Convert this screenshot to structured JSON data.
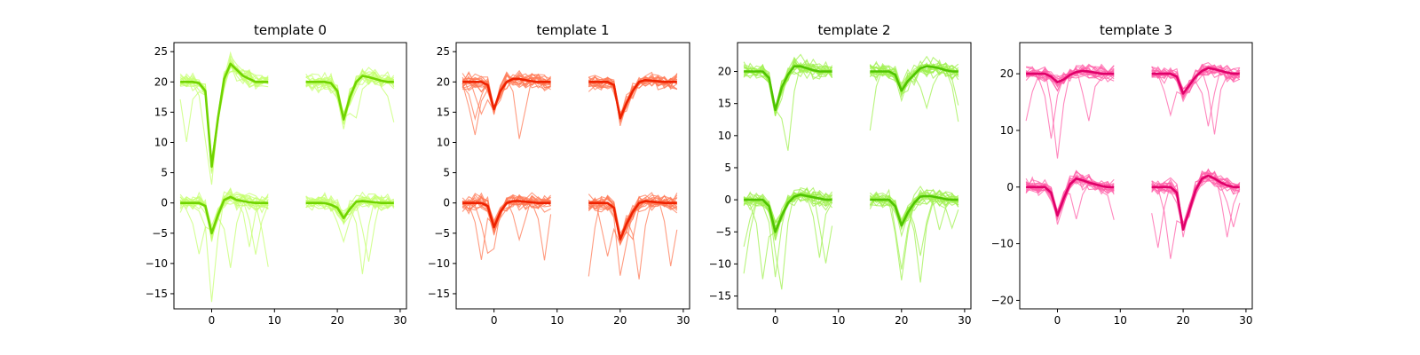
{
  "colors": {
    "template_0": {
      "light": "#c6ff70",
      "dark": "#70d400"
    },
    "template_1": {
      "light": "#ff7a55",
      "dark": "#ee2200"
    },
    "template_2": {
      "light": "#a0f050",
      "dark": "#4fc400"
    },
    "template_3": {
      "light": "#ff5fa8",
      "dark": "#e0006a"
    }
  },
  "chart_data": [
    {
      "type": "line",
      "title": "template 0",
      "xlabel": "",
      "ylabel": "",
      "xlim": [
        -6,
        31
      ],
      "ylim": [
        -17.5,
        26.5
      ],
      "xticks": [
        0,
        10,
        20,
        30
      ],
      "xtick_labels": [
        "0",
        "10",
        "20",
        "30"
      ],
      "yticks": [
        -15,
        -10,
        -5,
        0,
        5,
        10,
        15,
        20,
        25
      ],
      "ytick_labels": [
        "−15",
        "−10",
        "−5",
        "0",
        "5",
        "10",
        "15",
        "20",
        "25"
      ],
      "grid": false,
      "series": [
        {
          "channel": 0,
          "x": [
            -5,
            -4,
            -3,
            -2,
            -1,
            0,
            1,
            2,
            3,
            4,
            5,
            6,
            7,
            8,
            9
          ],
          "y": [
            20.0,
            20.0,
            20.0,
            19.8,
            18.5,
            6.0,
            14.0,
            20.5,
            23.0,
            22.0,
            21.0,
            20.5,
            20.0,
            20.0,
            20.0
          ]
        },
        {
          "channel": 1,
          "x": [
            15,
            16,
            17,
            18,
            19,
            20,
            21,
            22,
            23,
            24,
            25,
            26,
            27,
            28,
            29
          ],
          "y": [
            20.0,
            20.0,
            20.0,
            20.0,
            19.8,
            18.5,
            13.8,
            17.5,
            20.0,
            21.0,
            20.8,
            20.5,
            20.2,
            20.0,
            20.0
          ]
        },
        {
          "channel": 2,
          "x": [
            -5,
            -4,
            -3,
            -2,
            -1,
            0,
            1,
            2,
            3,
            4,
            5,
            6,
            7,
            8,
            9
          ],
          "y": [
            0.0,
            0.0,
            0.0,
            0.0,
            -0.5,
            -5.0,
            -2.0,
            0.5,
            1.0,
            0.5,
            0.3,
            0.1,
            0.0,
            0.0,
            0.0
          ]
        },
        {
          "channel": 3,
          "x": [
            15,
            16,
            17,
            18,
            19,
            20,
            21,
            22,
            23,
            24,
            25,
            26,
            27,
            28,
            29
          ],
          "y": [
            0.0,
            0.0,
            0.0,
            0.0,
            -0.3,
            -0.8,
            -2.5,
            -1.0,
            0.2,
            0.3,
            0.2,
            0.1,
            0.0,
            0.0,
            0.0
          ]
        }
      ]
    },
    {
      "type": "line",
      "title": "template 1",
      "xlabel": "",
      "ylabel": "",
      "xlim": [
        -6,
        31
      ],
      "ylim": [
        -17.5,
        26.5
      ],
      "xticks": [
        0,
        10,
        20,
        30
      ],
      "xtick_labels": [
        "0",
        "10",
        "20",
        "30"
      ],
      "yticks": [
        -15,
        -10,
        -5,
        0,
        5,
        10,
        15,
        20,
        25
      ],
      "ytick_labels": [
        "−15",
        "−10",
        "−5",
        "0",
        "5",
        "10",
        "15",
        "20",
        "25"
      ],
      "grid": false,
      "series": [
        {
          "channel": 0,
          "x": [
            -5,
            -4,
            -3,
            -2,
            -1,
            0,
            1,
            2,
            3,
            4,
            5,
            6,
            7,
            8,
            9
          ],
          "y": [
            20.0,
            20.0,
            20.0,
            20.0,
            19.5,
            15.5,
            18.5,
            20.0,
            20.5,
            20.5,
            20.3,
            20.1,
            20.0,
            20.0,
            20.0
          ]
        },
        {
          "channel": 1,
          "x": [
            15,
            16,
            17,
            18,
            19,
            20,
            21,
            22,
            23,
            24,
            25,
            26,
            27,
            28,
            29
          ],
          "y": [
            20.0,
            20.0,
            20.0,
            20.0,
            19.5,
            14.0,
            16.5,
            18.5,
            20.0,
            20.3,
            20.2,
            20.1,
            20.0,
            20.0,
            20.0
          ]
        },
        {
          "channel": 2,
          "x": [
            -5,
            -4,
            -3,
            -2,
            -1,
            0,
            1,
            2,
            3,
            4,
            5,
            6,
            7,
            8,
            9
          ],
          "y": [
            0.0,
            0.0,
            0.0,
            0.0,
            -0.5,
            -4.0,
            -1.5,
            0.0,
            0.3,
            0.3,
            0.2,
            0.1,
            0.0,
            0.0,
            0.0
          ]
        },
        {
          "channel": 3,
          "x": [
            15,
            16,
            17,
            18,
            19,
            20,
            21,
            22,
            23,
            24,
            25,
            26,
            27,
            28,
            29
          ],
          "y": [
            0.0,
            0.0,
            0.0,
            0.0,
            -0.8,
            -6.0,
            -3.5,
            -1.5,
            0.0,
            0.3,
            0.2,
            0.1,
            0.0,
            0.0,
            0.0
          ]
        }
      ]
    },
    {
      "type": "line",
      "title": "template 2",
      "xlabel": "",
      "ylabel": "",
      "xlim": [
        -6,
        31
      ],
      "ylim": [
        -17.0,
        24.5
      ],
      "xticks": [
        0,
        10,
        20,
        30
      ],
      "xtick_labels": [
        "0",
        "10",
        "20",
        "30"
      ],
      "yticks": [
        -15,
        -10,
        -5,
        0,
        5,
        10,
        15,
        20
      ],
      "ytick_labels": [
        "−15",
        "−10",
        "−5",
        "0",
        "5",
        "10",
        "15",
        "20"
      ],
      "grid": false,
      "series": [
        {
          "channel": 0,
          "x": [
            -5,
            -4,
            -3,
            -2,
            -1,
            0,
            1,
            2,
            3,
            4,
            5,
            6,
            7,
            8,
            9
          ],
          "y": [
            20.0,
            20.0,
            20.0,
            20.0,
            19.0,
            14.0,
            17.5,
            19.5,
            20.8,
            20.8,
            20.5,
            20.2,
            20.0,
            20.0,
            20.0
          ]
        },
        {
          "channel": 1,
          "x": [
            15,
            16,
            17,
            18,
            19,
            20,
            21,
            22,
            23,
            24,
            25,
            26,
            27,
            28,
            29
          ],
          "y": [
            20.0,
            20.0,
            20.0,
            20.0,
            19.5,
            17.0,
            18.5,
            19.5,
            20.5,
            20.8,
            20.7,
            20.5,
            20.2,
            20.0,
            20.0
          ]
        },
        {
          "channel": 2,
          "x": [
            -5,
            -4,
            -3,
            -2,
            -1,
            0,
            1,
            2,
            3,
            4,
            5,
            6,
            7,
            8,
            9
          ],
          "y": [
            0.0,
            0.0,
            0.0,
            0.0,
            -1.0,
            -5.0,
            -2.5,
            -0.5,
            0.5,
            0.8,
            0.6,
            0.4,
            0.2,
            0.0,
            0.0
          ]
        },
        {
          "channel": 3,
          "x": [
            15,
            16,
            17,
            18,
            19,
            20,
            21,
            22,
            23,
            24,
            25,
            26,
            27,
            28,
            29
          ],
          "y": [
            0.0,
            0.0,
            0.0,
            0.0,
            -1.0,
            -4.0,
            -2.0,
            -0.5,
            0.5,
            0.6,
            0.5,
            0.3,
            0.1,
            0.0,
            0.0
          ]
        }
      ]
    },
    {
      "type": "line",
      "title": "template 3",
      "xlabel": "",
      "ylabel": "",
      "xlim": [
        -6,
        31
      ],
      "ylim": [
        -21.5,
        25.5
      ],
      "xticks": [
        0,
        10,
        20,
        30
      ],
      "xtick_labels": [
        "0",
        "10",
        "20",
        "30"
      ],
      "yticks": [
        -20,
        -10,
        0,
        10,
        20
      ],
      "ytick_labels": [
        "−20",
        "−10",
        "0",
        "10",
        "20"
      ],
      "grid": false,
      "series": [
        {
          "channel": 0,
          "x": [
            -5,
            -4,
            -3,
            -2,
            -1,
            0,
            1,
            2,
            3,
            4,
            5,
            6,
            7,
            8,
            9
          ],
          "y": [
            20.0,
            20.0,
            20.0,
            20.0,
            19.5,
            18.5,
            19.0,
            19.8,
            20.3,
            20.5,
            20.4,
            20.2,
            20.0,
            20.0,
            20.0
          ]
        },
        {
          "channel": 1,
          "x": [
            15,
            16,
            17,
            18,
            19,
            20,
            21,
            22,
            23,
            24,
            25,
            26,
            27,
            28,
            29
          ],
          "y": [
            20.0,
            20.0,
            20.0,
            20.0,
            19.5,
            16.5,
            18.0,
            19.5,
            20.5,
            21.0,
            20.8,
            20.5,
            20.2,
            20.0,
            20.0
          ]
        },
        {
          "channel": 2,
          "x": [
            -5,
            -4,
            -3,
            -2,
            -1,
            0,
            1,
            2,
            3,
            4,
            5,
            6,
            7,
            8,
            9
          ],
          "y": [
            0.0,
            0.0,
            0.0,
            0.0,
            -1.0,
            -5.0,
            -2.0,
            0.5,
            1.5,
            1.2,
            0.8,
            0.5,
            0.2,
            0.0,
            0.0
          ]
        },
        {
          "channel": 3,
          "x": [
            15,
            16,
            17,
            18,
            19,
            20,
            21,
            22,
            23,
            24,
            25,
            26,
            27,
            28,
            29
          ],
          "y": [
            0.0,
            0.0,
            0.0,
            0.0,
            -1.0,
            -7.5,
            -4.0,
            -0.5,
            1.5,
            2.0,
            1.5,
            0.8,
            0.3,
            0.0,
            0.0
          ]
        }
      ]
    }
  ]
}
